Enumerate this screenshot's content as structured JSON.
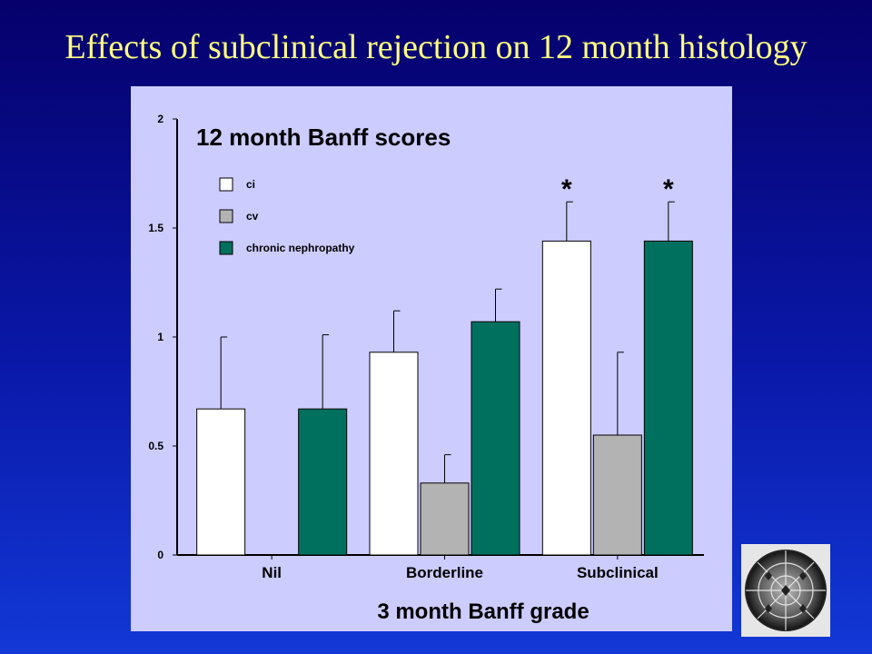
{
  "slide": {
    "title": "Effects of subclinical rejection on 12 month histology"
  },
  "chart_data": {
    "type": "bar",
    "title": "12 month Banff scores",
    "xlabel": "3 month Banff grade",
    "ylabel": "",
    "ylim": [
      0,
      2
    ],
    "yticks": [
      "0",
      "0.5",
      "1",
      "1.5",
      "2"
    ],
    "categories": [
      "Nil",
      "Borderline",
      "Subclinical"
    ],
    "series": [
      {
        "name": "ci",
        "color": "#ffffff",
        "values": [
          0.67,
          0.93,
          1.44
        ],
        "error": [
          0.33,
          0.19,
          0.18
        ]
      },
      {
        "name": "cv",
        "color": "#b3b3b3",
        "values": [
          0,
          0.33,
          0.55
        ],
        "error": [
          0,
          0.13,
          0.38
        ]
      },
      {
        "name": "chronic nephropathy",
        "color": "#00705e",
        "values": [
          0.67,
          1.07,
          1.44
        ],
        "error": [
          0.34,
          0.15,
          0.18
        ]
      }
    ],
    "significance": [
      {
        "category": "Subclinical",
        "series": "ci",
        "marker": "*"
      },
      {
        "category": "Subclinical",
        "series": "chronic nephropathy",
        "marker": "*"
      }
    ],
    "grid": false,
    "legend_position": "top-left"
  }
}
